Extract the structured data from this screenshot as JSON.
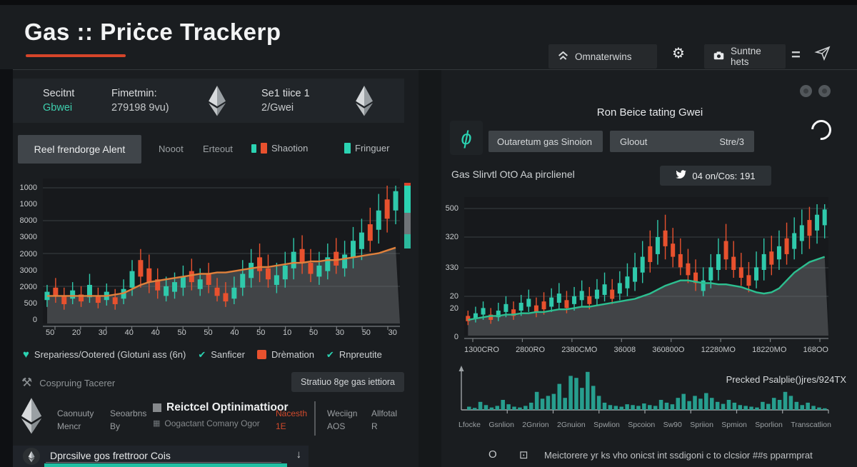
{
  "colors": {
    "accent_red": "#d6452a",
    "teal": "#2bd3b2",
    "candle_up": "#2fc9ab",
    "candle_down": "#e8512e",
    "area_gray": "#7c8082",
    "bar_teal": "#279e8e"
  },
  "header": {
    "title": "Gas :: Priċce Trackerp",
    "nav_home": "Omnaterwins",
    "nav_share": "Suntne hets",
    "equals": "="
  },
  "left": {
    "info": {
      "c1_top": "Secitnt",
      "c1_bottom": "Gbwei",
      "c2_top": "Fimetmin:",
      "c2_bottom": "279198 9vu)",
      "c3_top": "Se1 tiice 1",
      "c3_bottom": "2/Gwei"
    },
    "tabs": {
      "active": "Reel frendorge Alent",
      "tab2": "Nooot",
      "tab3": "Erteout",
      "chip1": "Shaotion",
      "chip2": "Fringuer"
    },
    "legend": [
      {
        "icon": "heart",
        "label": "Srepariess/Ootered (Glotuni ass (6n)"
      },
      {
        "icon": "check",
        "label": "Sanficer"
      },
      {
        "icon": "square",
        "label": "Drèmation"
      },
      {
        "icon": "check",
        "label": "Rnpreutite"
      }
    ],
    "tracker": {
      "label": "Cospruing Tacerer",
      "button": "Stratiuo 8ge gas iettiora"
    },
    "meta": {
      "c1a": "Caonuuty",
      "c1b": "Mencr",
      "c2a": "Seoarbns",
      "c2b": "By",
      "c3a": "Reictcel Optinimattioor",
      "c3b": "Oogactant Comany Ogor",
      "c4a": "Nacesth",
      "c4b": "1E",
      "c5a": "Weciign",
      "c5b": "AOS",
      "c6a": "Allfotal",
      "c6b": "R"
    },
    "dropdown": {
      "label": "Dprcsilve gos frettroor Cois",
      "arrow": "↓"
    }
  },
  "right": {
    "title": "Ron Beice tating Gwei",
    "select1": "Outaretum gas Sinoion",
    "select2_left": "Gloout",
    "select2_right": "Stre/3",
    "subtitle": "Gas Slirvtl OtO Aa pirclienel",
    "badge": "04 on/Cos: 191",
    "footer_circle": "O",
    "footer_square": "⊡",
    "footer": "Meictorere yr ks vho onicst int ssdigoni c to clcsior ##s pparmprat"
  },
  "chart_data": [
    {
      "name": "main-gas-candles",
      "type": "candlestick",
      "title": "",
      "y_ticks": [
        "1000",
        "1000",
        "8000",
        "3000",
        "2000",
        "3000",
        "2000",
        "500",
        "0"
      ],
      "x_ticks": [
        "50",
        "20",
        "30",
        "40",
        "40",
        "50",
        "50",
        "40",
        "50",
        "10",
        "50",
        "30",
        "50",
        "30"
      ],
      "candles": [
        [
          12,
          17,
          23,
          28,
          "u"
        ],
        [
          15,
          20,
          26,
          33,
          "d"
        ],
        [
          10,
          14,
          20,
          26,
          "d"
        ],
        [
          14,
          18,
          24,
          30,
          "u"
        ],
        [
          12,
          16,
          21,
          27,
          "d"
        ],
        [
          15,
          19,
          28,
          36,
          "u"
        ],
        [
          11,
          15,
          20,
          26,
          "d"
        ],
        [
          13,
          17,
          23,
          29,
          "u"
        ],
        [
          10,
          14,
          19,
          25,
          "d"
        ],
        [
          14,
          18,
          25,
          32,
          "u"
        ],
        [
          20,
          26,
          38,
          46,
          "u"
        ],
        [
          26,
          34,
          46,
          54,
          "d"
        ],
        [
          22,
          30,
          40,
          50,
          "d"
        ],
        [
          18,
          24,
          32,
          40,
          "d"
        ],
        [
          16,
          20,
          27,
          34,
          "u"
        ],
        [
          18,
          23,
          30,
          37,
          "u"
        ],
        [
          20,
          26,
          34,
          42,
          "u"
        ],
        [
          24,
          30,
          38,
          47,
          "d"
        ],
        [
          20,
          25,
          32,
          40,
          "u"
        ],
        [
          22,
          28,
          36,
          44,
          "d"
        ],
        [
          16,
          20,
          26,
          33,
          "d"
        ],
        [
          12,
          16,
          22,
          30,
          "d"
        ],
        [
          14,
          18,
          26,
          34,
          "u"
        ],
        [
          20,
          26,
          36,
          46,
          "u"
        ],
        [
          26,
          33,
          44,
          54,
          "u"
        ],
        [
          30,
          38,
          48,
          58,
          "d"
        ],
        [
          26,
          32,
          40,
          50,
          "d"
        ],
        [
          22,
          28,
          35,
          44,
          "u"
        ],
        [
          26,
          32,
          42,
          52,
          "u"
        ],
        [
          32,
          40,
          52,
          62,
          "u"
        ],
        [
          36,
          44,
          54,
          64,
          "d"
        ],
        [
          30,
          36,
          44,
          54,
          "d"
        ],
        [
          28,
          34,
          42,
          52,
          "u"
        ],
        [
          32,
          38,
          48,
          58,
          "u"
        ],
        [
          36,
          42,
          52,
          62,
          "d"
        ],
        [
          34,
          40,
          50,
          60,
          "u"
        ],
        [
          40,
          48,
          60,
          70,
          "u"
        ],
        [
          46,
          54,
          66,
          76,
          "u"
        ],
        [
          52,
          60,
          72,
          84,
          "d"
        ],
        [
          58,
          68,
          82,
          94,
          "u"
        ],
        [
          66,
          76,
          90,
          100,
          "d"
        ],
        [
          72,
          82,
          96,
          100,
          "u"
        ]
      ],
      "overlay_line": {
        "color": "#e0813c",
        "values": [
          20,
          20,
          20,
          20,
          20,
          20,
          20,
          20,
          21,
          22,
          25,
          28,
          30,
          31,
          32,
          33,
          34,
          35,
          36,
          36,
          37,
          37,
          38,
          39,
          40,
          41,
          41,
          42,
          43,
          44,
          44,
          45,
          45,
          46,
          46,
          47,
          48,
          49,
          50,
          51,
          53,
          55
        ]
      }
    },
    {
      "name": "gwei-rating-candles",
      "type": "candlestick",
      "title": "",
      "y_ticks": [
        "500",
        "320",
        "330",
        "20",
        "20",
        "0"
      ],
      "x_ticks": [
        "1300CRO",
        "2800RO",
        "2380CMO",
        "36008",
        "360800O",
        "12280MO",
        "18220MO",
        "168OO"
      ],
      "candles": [
        [
          8,
          11,
          15,
          19,
          "d"
        ],
        [
          10,
          13,
          17,
          22,
          "u"
        ],
        [
          12,
          16,
          21,
          26,
          "u"
        ],
        [
          9,
          12,
          16,
          21,
          "d"
        ],
        [
          11,
          14,
          19,
          25,
          "u"
        ],
        [
          14,
          18,
          24,
          30,
          "u"
        ],
        [
          12,
          15,
          20,
          26,
          "d"
        ],
        [
          15,
          19,
          25,
          31,
          "u"
        ],
        [
          18,
          22,
          28,
          35,
          "u"
        ],
        [
          14,
          18,
          23,
          29,
          "d"
        ],
        [
          16,
          20,
          26,
          33,
          "d"
        ],
        [
          18,
          22,
          29,
          36,
          "u"
        ],
        [
          20,
          25,
          32,
          40,
          "u"
        ],
        [
          17,
          21,
          27,
          34,
          "d"
        ],
        [
          19,
          24,
          30,
          37,
          "u"
        ],
        [
          22,
          27,
          34,
          42,
          "u"
        ],
        [
          20,
          24,
          30,
          37,
          "d"
        ],
        [
          23,
          28,
          35,
          43,
          "u"
        ],
        [
          26,
          31,
          39,
          48,
          "u"
        ],
        [
          24,
          28,
          35,
          43,
          "d"
        ],
        [
          27,
          32,
          40,
          49,
          "u"
        ],
        [
          30,
          36,
          45,
          55,
          "u"
        ],
        [
          34,
          41,
          52,
          63,
          "u"
        ],
        [
          40,
          48,
          60,
          72,
          "u"
        ],
        [
          48,
          56,
          68,
          80,
          "d"
        ],
        [
          54,
          62,
          75,
          88,
          "u"
        ],
        [
          58,
          68,
          80,
          92,
          "d"
        ],
        [
          52,
          60,
          70,
          82,
          "d"
        ],
        [
          46,
          52,
          62,
          74,
          "d"
        ],
        [
          40,
          46,
          55,
          66,
          "d"
        ],
        [
          34,
          40,
          48,
          58,
          "d"
        ],
        [
          30,
          34,
          42,
          52,
          "u"
        ],
        [
          36,
          42,
          52,
          62,
          "u"
        ],
        [
          42,
          50,
          62,
          74,
          "u"
        ],
        [
          50,
          58,
          72,
          85,
          "d"
        ],
        [
          44,
          50,
          60,
          72,
          "d"
        ],
        [
          38,
          44,
          52,
          63,
          "d"
        ],
        [
          33,
          38,
          46,
          56,
          "d"
        ],
        [
          36,
          42,
          52,
          64,
          "u"
        ],
        [
          42,
          50,
          62,
          74,
          "u"
        ],
        [
          46,
          54,
          64,
          76,
          "d"
        ],
        [
          50,
          58,
          68,
          80,
          "u"
        ],
        [
          54,
          62,
          74,
          86,
          "d"
        ],
        [
          58,
          66,
          78,
          90,
          "u"
        ],
        [
          62,
          72,
          84,
          96,
          "u"
        ],
        [
          66,
          76,
          88,
          98,
          "d"
        ],
        [
          70,
          80,
          92,
          100,
          "u"
        ],
        [
          74,
          84,
          96,
          100,
          "u"
        ]
      ],
      "overlay_line": {
        "color": "#2dbf90",
        "values": [
          12,
          13,
          14,
          15,
          15,
          16,
          16,
          17,
          17,
          18,
          18,
          19,
          20,
          20,
          21,
          22,
          22,
          23,
          24,
          25,
          26,
          27,
          28,
          30,
          32,
          35,
          38,
          40,
          42,
          42,
          41,
          40,
          40,
          39,
          39,
          38,
          37,
          35,
          33,
          32,
          33,
          36,
          42,
          48,
          52,
          56,
          58,
          60
        ]
      }
    },
    {
      "name": "pending-tx-bars",
      "type": "bar",
      "title": "Precked Psalplie()jres/924TX",
      "color": "#279e8e",
      "categories": [
        "Lfocke",
        "Gsnlion",
        "2Gnrion",
        "2Gnuion",
        "Spwlion",
        "Spcoion",
        "Sw90",
        "Spriion",
        "Spmion",
        "Sporlion",
        "Transcatlion"
      ],
      "values": [
        8,
        5,
        20,
        12,
        6,
        10,
        25,
        14,
        8,
        6,
        10,
        18,
        45,
        28,
        35,
        40,
        65,
        30,
        85,
        80,
        55,
        95,
        60,
        35,
        18,
        12,
        10,
        8,
        14,
        12,
        10,
        16,
        12,
        10,
        25,
        18,
        14,
        30,
        40,
        22,
        35,
        28,
        42,
        30,
        20,
        15,
        25,
        18,
        12,
        10,
        8,
        6,
        20,
        15,
        30,
        25,
        45,
        35,
        20,
        12,
        18,
        10,
        6,
        4
      ]
    }
  ]
}
